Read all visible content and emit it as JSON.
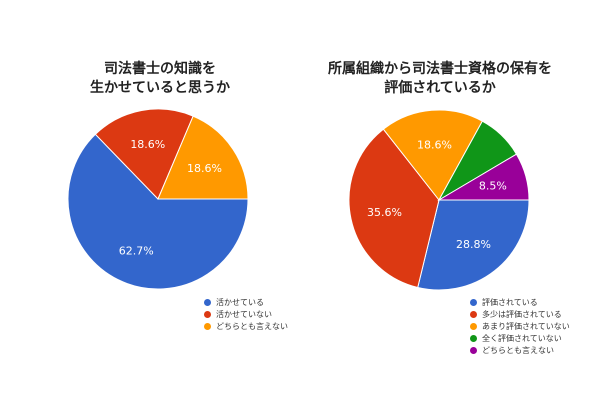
{
  "chart_data": [
    {
      "type": "pie",
      "title_lines": [
        "司法書士の知識を",
        "生かせていると思うか"
      ],
      "slices": [
        {
          "label": "活かせている",
          "value": 62.7,
          "display": "62.7%",
          "color": "#3366cc"
        },
        {
          "label": "活かせていない",
          "value": 18.6,
          "display": "18.6%",
          "color": "#dc3912"
        },
        {
          "label": "どちらとも言えない",
          "value": 18.6,
          "display": "18.6%",
          "color": "#ff9900"
        }
      ],
      "legend_position": "bottom-right"
    },
    {
      "type": "pie",
      "title_lines": [
        "所属組織から司法書士資格の保有を",
        "評価されているか"
      ],
      "slices": [
        {
          "label": "評価されている",
          "value": 28.8,
          "display": "28.8%",
          "color": "#3366cc"
        },
        {
          "label": "多少は評価されている",
          "value": 35.6,
          "display": "35.6%",
          "color": "#dc3912"
        },
        {
          "label": "あまり評価されていない",
          "value": 18.6,
          "display": "18.6%",
          "color": "#ff9900"
        },
        {
          "label": "全く評価されていない",
          "value": 8.5,
          "display": "",
          "color": "#109618"
        },
        {
          "label": "どちらとも言えない",
          "value": 8.5,
          "display": "8.5%",
          "color": "#990099"
        }
      ],
      "legend_position": "bottom-right"
    }
  ]
}
